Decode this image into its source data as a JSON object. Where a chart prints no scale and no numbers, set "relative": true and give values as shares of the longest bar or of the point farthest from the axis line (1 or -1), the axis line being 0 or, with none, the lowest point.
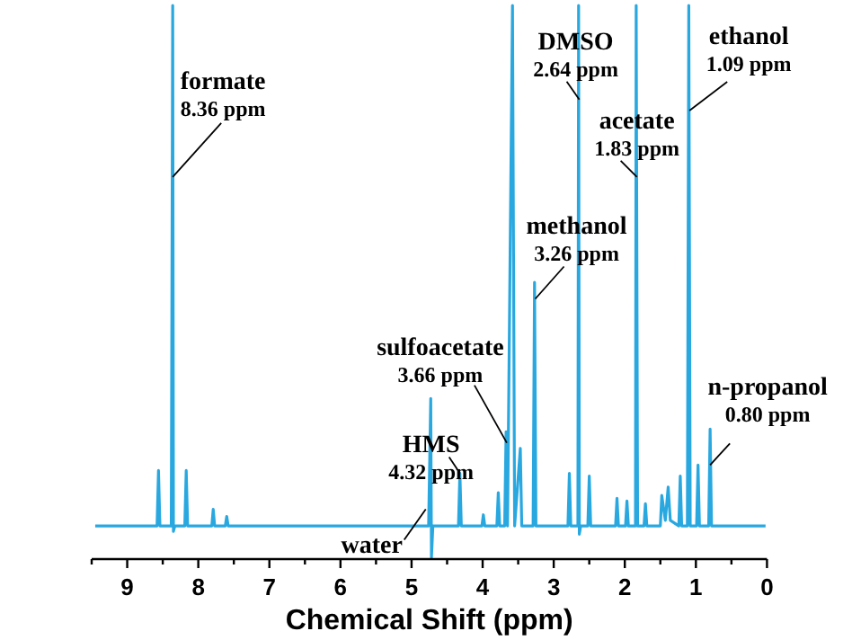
{
  "chart_data": {
    "type": "line",
    "relative": true,
    "xlabel": "Chemical Shift (ppm)",
    "xlim": [
      9.5,
      0
    ],
    "xticks": [
      {
        "value": 9.5,
        "label": null
      },
      9,
      {
        "value": 8.5,
        "label": null
      },
      8,
      {
        "value": 7.5,
        "label": null
      },
      7,
      {
        "value": 6.5,
        "label": null
      },
      6,
      {
        "value": 5.5,
        "label": null
      },
      5,
      {
        "value": 4.5,
        "label": null
      },
      4,
      {
        "value": 3.5,
        "label": null
      },
      3,
      {
        "value": 2.5,
        "label": null
      },
      2,
      {
        "value": 1.5,
        "label": null
      },
      1,
      {
        "value": 0.5,
        "label": null
      },
      0
    ],
    "series": [
      {
        "color": "#29a8e0",
        "x": [
          9.45,
          8.58,
          8.56,
          8.54,
          8.38,
          8.36,
          8.35,
          8.33,
          8.19,
          8.17,
          8.15,
          7.81,
          7.79,
          7.77,
          7.62,
          7.6,
          7.58,
          4.76,
          4.73,
          4.72,
          4.7,
          4.34,
          4.32,
          4.3,
          4.01,
          3.99,
          3.97,
          3.8,
          3.78,
          3.76,
          3.69,
          3.67,
          3.65,
          3.58,
          3.55,
          3.47,
          3.45,
          3.29,
          3.27,
          3.25,
          2.8,
          2.78,
          2.76,
          2.66,
          2.65,
          2.64,
          2.62,
          2.52,
          2.5,
          2.48,
          2.13,
          2.11,
          2.09,
          1.99,
          1.97,
          1.95,
          1.85,
          1.84,
          1.82,
          1.73,
          1.71,
          1.69,
          1.5,
          1.48,
          1.43,
          1.39,
          1.36,
          1.24,
          1.22,
          1.2,
          1.12,
          1.1,
          1.08,
          0.99,
          0.97,
          0.95,
          0.82,
          0.8,
          0.78,
          0.02
        ],
        "values": [
          0.06,
          0.06,
          0.16,
          0.06,
          0.06,
          1,
          0.05,
          0.06,
          0.06,
          0.16,
          0.06,
          0.06,
          0.09,
          0.06,
          0.06,
          0.077,
          0.06,
          0.06,
          0.29,
          0.003,
          0.06,
          0.06,
          0.155,
          0.06,
          0.06,
          0.08,
          0.06,
          0.06,
          0.12,
          0.06,
          0.06,
          0.23,
          0.06,
          1,
          0.06,
          0.2,
          0.06,
          0.06,
          0.5,
          0.06,
          0.06,
          0.155,
          0.06,
          0.06,
          1,
          0.045,
          0.06,
          0.06,
          0.15,
          0.06,
          0.06,
          0.11,
          0.06,
          0.06,
          0.105,
          0.06,
          0.06,
          1,
          0.06,
          0.06,
          0.1,
          0.06,
          0.06,
          0.115,
          0.07,
          0.13,
          0.07,
          0.06,
          0.15,
          0.06,
          0.06,
          1,
          0.06,
          0.06,
          0.17,
          0.06,
          0.06,
          0.235,
          0.06,
          0.06
        ]
      }
    ],
    "annotations": [
      {
        "text": "formate\n8.36 ppm",
        "x": 8.36,
        "y": 0.69
      },
      {
        "text": "sulfoacetate\n3.66 ppm",
        "x": 3.66,
        "y": 0.21
      },
      {
        "text": "HMS\n4.32 ppm",
        "x": 4.32,
        "y": 0.155
      },
      {
        "text": "water",
        "x": 4.8,
        "y": 0.09
      },
      {
        "text": "methanol\n3.26 ppm",
        "x": 3.26,
        "y": 0.47
      },
      {
        "text": "DMSO\n2.64 ppm",
        "x": 2.64,
        "y": 0.83
      },
      {
        "text": "acetate\n1.83 ppm",
        "x": 1.83,
        "y": 0.69
      },
      {
        "text": "ethanol\n1.09 ppm",
        "x": 1.09,
        "y": 0.81
      },
      {
        "text": "n-propanol\n0.80 ppm",
        "x": 0.8,
        "y": 0.17
      }
    ]
  }
}
